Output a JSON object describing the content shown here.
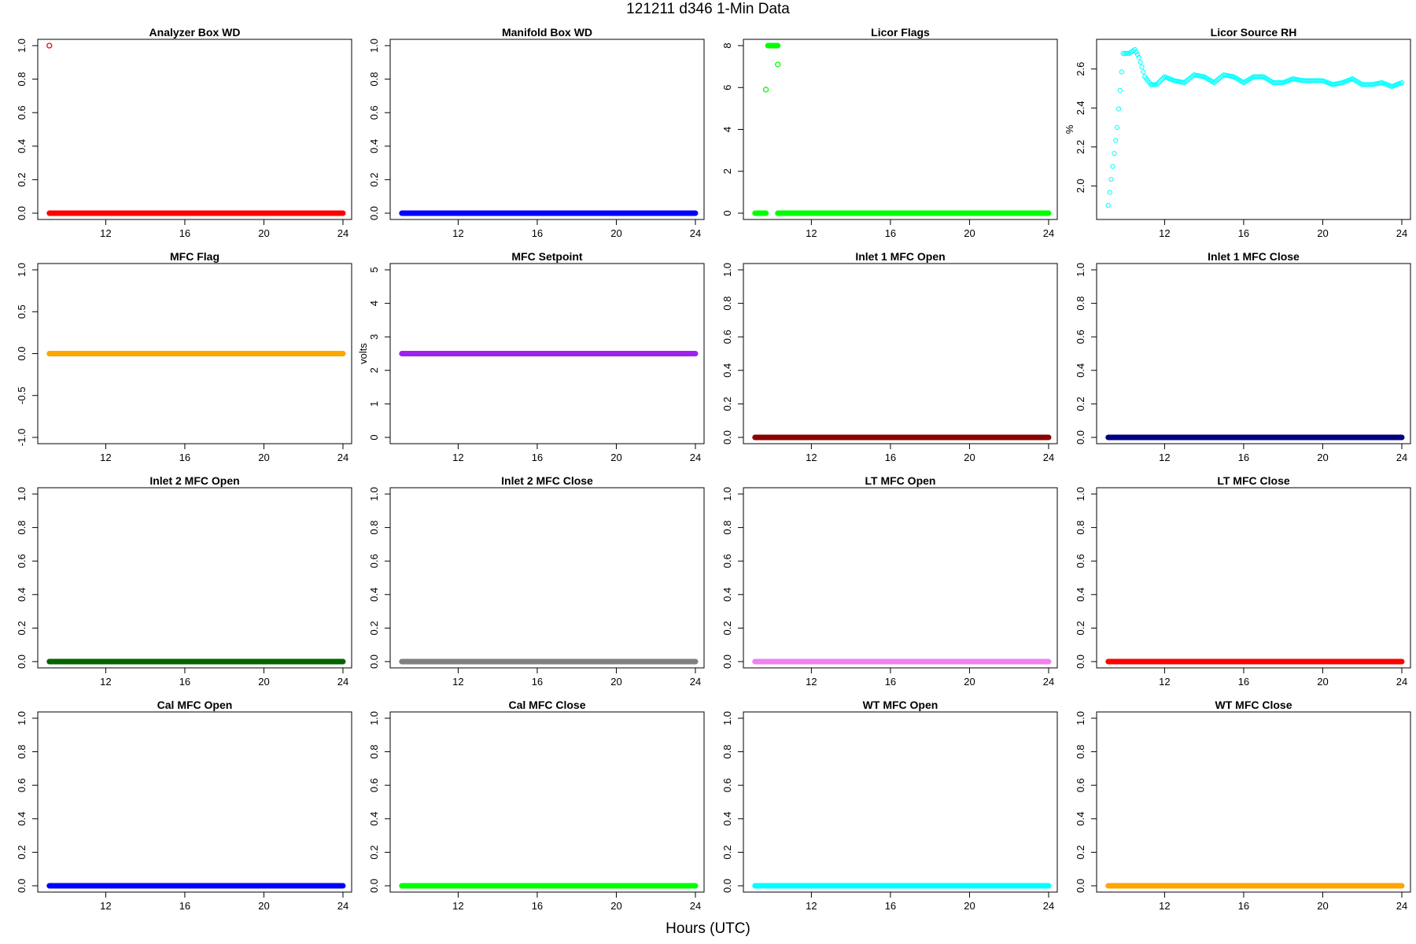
{
  "figure": {
    "title": "121211   d346   1-Min Data",
    "xlabel": "Hours (UTC)"
  },
  "chart_data": [
    {
      "type": "scatter",
      "title": "Analyzer Box WD",
      "ylabel": "",
      "xlim": [
        8.8,
        24.2
      ],
      "ylim": [
        0,
        1
      ],
      "yticks": [
        "0.0",
        "0.2",
        "0.4",
        "0.6",
        "0.8",
        "1.0"
      ],
      "xticks": [
        12,
        16,
        20,
        24
      ],
      "color": "#ff0000",
      "segments": [
        {
          "x0": 9.15,
          "x1": 24,
          "y": 0
        }
      ],
      "points": [
        {
          "x": 9.15,
          "y": 1
        }
      ]
    },
    {
      "type": "scatter",
      "title": "Manifold Box WD",
      "ylabel": "",
      "xlim": [
        8.8,
        24.2
      ],
      "ylim": [
        0,
        1
      ],
      "yticks": [
        "0.0",
        "0.2",
        "0.4",
        "0.6",
        "0.8",
        "1.0"
      ],
      "xticks": [
        12,
        16,
        20,
        24
      ],
      "color": "#0000ff",
      "segments": [
        {
          "x0": 9.15,
          "x1": 24,
          "y": 0
        }
      ],
      "points": []
    },
    {
      "type": "scatter",
      "title": "Licor Flags",
      "ylabel": "",
      "xlim": [
        8.8,
        24.2
      ],
      "ylim": [
        0,
        8
      ],
      "yticks": [
        "0",
        "2",
        "4",
        "6",
        "8"
      ],
      "xticks": [
        12,
        16,
        20,
        24
      ],
      "color": "#00ff00",
      "segments": [
        {
          "x0": 9.15,
          "x1": 9.7,
          "y": 0
        },
        {
          "x0": 10.3,
          "x1": 24,
          "y": 0
        },
        {
          "x0": 9.8,
          "x1": 10.3,
          "y": 8
        }
      ],
      "points": [
        {
          "x": 9.7,
          "y": 5.9
        },
        {
          "x": 10.3,
          "y": 7.1
        }
      ]
    },
    {
      "type": "scatter",
      "title": "Licor Source RH",
      "ylabel": "%",
      "xlim": [
        8.8,
        24.2
      ],
      "ylim": [
        1.86,
        2.72
      ],
      "yticks": [
        "2.0",
        "2.2",
        "2.4",
        "2.6"
      ],
      "xticks": [
        12,
        16,
        20,
        24
      ],
      "color": "#00ffff",
      "segments": [],
      "curve": [
        [
          9.15,
          1.9
        ],
        [
          9.6,
          2.3
        ],
        [
          9.9,
          2.68
        ],
        [
          10.2,
          2.68
        ],
        [
          10.5,
          2.7
        ],
        [
          10.7,
          2.66
        ],
        [
          11.0,
          2.56
        ],
        [
          11.3,
          2.52
        ],
        [
          11.6,
          2.52
        ],
        [
          12.0,
          2.56
        ],
        [
          12.5,
          2.54
        ],
        [
          13.0,
          2.53
        ],
        [
          13.5,
          2.57
        ],
        [
          14.0,
          2.56
        ],
        [
          14.5,
          2.53
        ],
        [
          15.0,
          2.57
        ],
        [
          15.5,
          2.56
        ],
        [
          16.0,
          2.53
        ],
        [
          16.5,
          2.56
        ],
        [
          17.0,
          2.56
        ],
        [
          17.5,
          2.53
        ],
        [
          18.0,
          2.53
        ],
        [
          18.5,
          2.55
        ],
        [
          19.0,
          2.54
        ],
        [
          19.5,
          2.54
        ],
        [
          20.0,
          2.54
        ],
        [
          20.5,
          2.52
        ],
        [
          21.0,
          2.53
        ],
        [
          21.5,
          2.55
        ],
        [
          22.0,
          2.52
        ],
        [
          22.5,
          2.52
        ],
        [
          23.0,
          2.53
        ],
        [
          23.5,
          2.51
        ],
        [
          24.0,
          2.53
        ]
      ],
      "points": []
    },
    {
      "type": "scatter",
      "title": "MFC Flag",
      "ylabel": "",
      "xlim": [
        8.8,
        24.2
      ],
      "ylim": [
        -1,
        1
      ],
      "yticks": [
        "-1.0",
        "-0.5",
        "0.0",
        "0.5",
        "1.0"
      ],
      "xticks": [
        12,
        16,
        20,
        24
      ],
      "color": "#ffa500",
      "segments": [
        {
          "x0": 9.15,
          "x1": 24,
          "y": 0
        }
      ],
      "points": []
    },
    {
      "type": "scatter",
      "title": "MFC Setpoint",
      "ylabel": "volts",
      "xlim": [
        8.8,
        24.2
      ],
      "ylim": [
        0,
        5
      ],
      "yticks": [
        "0",
        "1",
        "2",
        "3",
        "4",
        "5"
      ],
      "xticks": [
        12,
        16,
        20,
        24
      ],
      "color": "#a020f0",
      "segments": [
        {
          "x0": 9.15,
          "x1": 24,
          "y": 2.5
        }
      ],
      "points": []
    },
    {
      "type": "scatter",
      "title": "Inlet 1 MFC Open",
      "ylabel": "",
      "xlim": [
        8.8,
        24.2
      ],
      "ylim": [
        0,
        1
      ],
      "yticks": [
        "0.0",
        "0.2",
        "0.4",
        "0.6",
        "0.8",
        "1.0"
      ],
      "xticks": [
        12,
        16,
        20,
        24
      ],
      "color": "#8b0000",
      "segments": [
        {
          "x0": 9.15,
          "x1": 24,
          "y": 0
        }
      ],
      "points": []
    },
    {
      "type": "scatter",
      "title": "Inlet 1 MFC Close",
      "ylabel": "",
      "xlim": [
        8.8,
        24.2
      ],
      "ylim": [
        0,
        1
      ],
      "yticks": [
        "0.0",
        "0.2",
        "0.4",
        "0.6",
        "0.8",
        "1.0"
      ],
      "xticks": [
        12,
        16,
        20,
        24
      ],
      "color": "#000080",
      "segments": [
        {
          "x0": 9.15,
          "x1": 24,
          "y": 0
        }
      ],
      "points": []
    },
    {
      "type": "scatter",
      "title": "Inlet 2 MFC Open",
      "ylabel": "",
      "xlim": [
        8.8,
        24.2
      ],
      "ylim": [
        0,
        1
      ],
      "yticks": [
        "0.0",
        "0.2",
        "0.4",
        "0.6",
        "0.8",
        "1.0"
      ],
      "xticks": [
        12,
        16,
        20,
        24
      ],
      "color": "#006400",
      "segments": [
        {
          "x0": 9.15,
          "x1": 24,
          "y": 0
        }
      ],
      "points": []
    },
    {
      "type": "scatter",
      "title": "Inlet 2 MFC Close",
      "ylabel": "",
      "xlim": [
        8.8,
        24.2
      ],
      "ylim": [
        0,
        1
      ],
      "yticks": [
        "0.0",
        "0.2",
        "0.4",
        "0.6",
        "0.8",
        "1.0"
      ],
      "xticks": [
        12,
        16,
        20,
        24
      ],
      "color": "#808080",
      "segments": [
        {
          "x0": 9.15,
          "x1": 24,
          "y": 0
        }
      ],
      "points": []
    },
    {
      "type": "scatter",
      "title": "LT MFC Open",
      "ylabel": "",
      "xlim": [
        8.8,
        24.2
      ],
      "ylim": [
        0,
        1
      ],
      "yticks": [
        "0.0",
        "0.2",
        "0.4",
        "0.6",
        "0.8",
        "1.0"
      ],
      "xticks": [
        12,
        16,
        20,
        24
      ],
      "color": "#ee82ee",
      "segments": [
        {
          "x0": 9.15,
          "x1": 24,
          "y": 0
        }
      ],
      "points": []
    },
    {
      "type": "scatter",
      "title": "LT MFC Close",
      "ylabel": "",
      "xlim": [
        8.8,
        24.2
      ],
      "ylim": [
        0,
        1
      ],
      "yticks": [
        "0.0",
        "0.2",
        "0.4",
        "0.6",
        "0.8",
        "1.0"
      ],
      "xticks": [
        12,
        16,
        20,
        24
      ],
      "color": "#ff0000",
      "segments": [
        {
          "x0": 9.15,
          "x1": 24,
          "y": 0
        }
      ],
      "points": []
    },
    {
      "type": "scatter",
      "title": "Cal MFC Open",
      "ylabel": "",
      "xlim": [
        8.8,
        24.2
      ],
      "ylim": [
        0,
        1
      ],
      "yticks": [
        "0.0",
        "0.2",
        "0.4",
        "0.6",
        "0.8",
        "1.0"
      ],
      "xticks": [
        12,
        16,
        20,
        24
      ],
      "color": "#0000ff",
      "segments": [
        {
          "x0": 9.15,
          "x1": 24,
          "y": 0
        }
      ],
      "points": []
    },
    {
      "type": "scatter",
      "title": "Cal MFC Close",
      "ylabel": "",
      "xlim": [
        8.8,
        24.2
      ],
      "ylim": [
        0,
        1
      ],
      "yticks": [
        "0.0",
        "0.2",
        "0.4",
        "0.6",
        "0.8",
        "1.0"
      ],
      "xticks": [
        12,
        16,
        20,
        24
      ],
      "color": "#00ff00",
      "segments": [
        {
          "x0": 9.15,
          "x1": 24,
          "y": 0
        }
      ],
      "points": []
    },
    {
      "type": "scatter",
      "title": "WT MFC Open",
      "ylabel": "",
      "xlim": [
        8.8,
        24.2
      ],
      "ylim": [
        0,
        1
      ],
      "yticks": [
        "0.0",
        "0.2",
        "0.4",
        "0.6",
        "0.8",
        "1.0"
      ],
      "xticks": [
        12,
        16,
        20,
        24
      ],
      "color": "#00ffff",
      "segments": [
        {
          "x0": 9.15,
          "x1": 24,
          "y": 0
        }
      ],
      "points": []
    },
    {
      "type": "scatter",
      "title": "WT MFC Close",
      "ylabel": "",
      "xlim": [
        8.8,
        24.2
      ],
      "ylim": [
        0,
        1
      ],
      "yticks": [
        "0.0",
        "0.2",
        "0.4",
        "0.6",
        "0.8",
        "1.0"
      ],
      "xticks": [
        12,
        16,
        20,
        24
      ],
      "color": "#ffa500",
      "segments": [
        {
          "x0": 9.15,
          "x1": 24,
          "y": 0
        }
      ],
      "points": []
    }
  ]
}
